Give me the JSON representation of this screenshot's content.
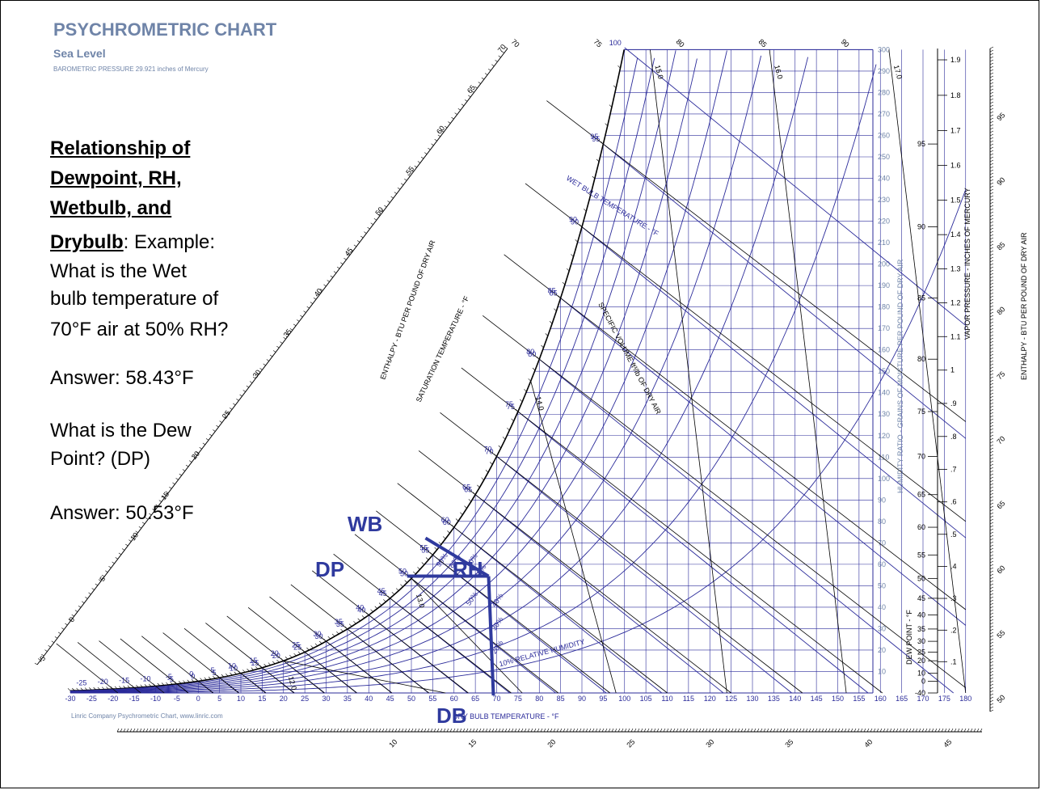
{
  "header": {
    "title": "PSYCHROMETRIC CHART",
    "subtitle": "Sea Level",
    "pressure": "BAROMETRIC PRESSURE 29.921 inches of Mercury"
  },
  "question": {
    "heading_lines": [
      "Relationship of",
      "Dewpoint, RH,",
      "Wetbulb, and",
      "Drybulb"
    ],
    "example_suffix": ":  Example:",
    "q1_lines": [
      "What is the Wet",
      "bulb temperature of",
      "70°F air at 50% RH?"
    ],
    "a1": "Answer: 58.43°F",
    "q2_lines": [
      "What is the Dew",
      "Point? (DP)"
    ],
    "a2": "Answer: 50.53°F"
  },
  "credit": "Linric Company Psychrometric Chart, www.linric.com",
  "markers": {
    "wb": "WB",
    "dp": "DP",
    "rh": "RH",
    "db": "DB"
  },
  "colors": {
    "blue": "#2b2b9a",
    "grey": "#6f84a8",
    "marker": "#2f3a9e"
  },
  "chart_data": {
    "type": "psychrometric",
    "title": "PSYCHROMETRIC CHART",
    "axes": {
      "dry_bulb": {
        "label": "DRY BULB TEMPERATURE - °F",
        "ticks": [
          -30,
          -25,
          -20,
          -15,
          -10,
          -5,
          0,
          5,
          10,
          15,
          20,
          25,
          30,
          35,
          40,
          45,
          50,
          55,
          60,
          65,
          70,
          75,
          80,
          85,
          90,
          95,
          100,
          105,
          110,
          115,
          120,
          125,
          130,
          135,
          140,
          145,
          150,
          155,
          160,
          165,
          170,
          175,
          180
        ]
      },
      "humidity_ratio": {
        "label": "HUMIDITY RATIO - GRAINS OF MOISTURE PER POUND OF DRY AIR",
        "range": [
          0,
          300
        ],
        "ticks": [
          10,
          20,
          30,
          40,
          50,
          60,
          70,
          80,
          90,
          100,
          110,
          120,
          130,
          140,
          150,
          160,
          170,
          180,
          190,
          200,
          210,
          220,
          230,
          240,
          250,
          260,
          270,
          280,
          290,
          300
        ]
      },
      "dew_point": {
        "label": "DEW POINT - °F",
        "ticks": [
          "-40",
          "0",
          "10",
          "20",
          "25",
          "30",
          "35",
          "40",
          "45",
          "50",
          "55",
          "60",
          "65",
          "70",
          "75",
          "80",
          "85",
          "90",
          "95"
        ]
      },
      "vapor_pressure": {
        "label": "VAPOR PRESSURE - INCHES OF MERCURY",
        "ticks": [
          ".1",
          ".2",
          ".3",
          ".4",
          ".5",
          ".6",
          ".7",
          ".8",
          ".9",
          "1",
          "1.1",
          "1.2",
          "1.3",
          "1.4",
          "1.5",
          "1.6",
          "1.7",
          "1.8",
          "1.9"
        ]
      },
      "enthalpy_left": {
        "label": "ENTHALPY - BTU PER POUND OF DRY AIR",
        "ticks": [
          "-5",
          "0",
          "5",
          "10",
          "15",
          "20",
          "25",
          "30",
          "35",
          "40",
          "45",
          "50",
          "55",
          "60",
          "65",
          "70"
        ]
      },
      "enthalpy_right": {
        "label": "ENTHALPY - BTU PER POUND OF DRY AIR",
        "ticks": [
          "50",
          "55",
          "60",
          "65",
          "70",
          "75",
          "80",
          "85",
          "90",
          "95"
        ]
      },
      "enthalpy_bottom": {
        "ticks": [
          "10",
          "15",
          "20",
          "25",
          "30",
          "35",
          "40",
          "45"
        ]
      },
      "enthalpy_top": {
        "ticks": [
          "70",
          "75",
          "80",
          "85",
          "90"
        ]
      }
    },
    "saturation_label": "SATURATION TEMPERATURE - °F",
    "saturation_ticks": [
      "-25",
      "-20",
      "-15",
      "-10",
      "-5",
      "0",
      "5",
      "10",
      "15",
      "20",
      "25",
      "30",
      "35",
      "40",
      "45",
      "50",
      "55",
      "60",
      "65",
      "70",
      "75",
      "80",
      "85",
      "90",
      "95"
    ],
    "wet_bulb_label": "WET BULB TEMPERATURE - °F",
    "wet_bulb_ticks": [
      "-5",
      "0",
      "5",
      "10",
      "15",
      "20",
      "25",
      "30",
      "35",
      "40",
      "45",
      "50",
      "55",
      "60",
      "65",
      "70",
      "75",
      "80",
      "85",
      "90",
      "95",
      "100"
    ],
    "relative_humidity": {
      "label": "10% RELATIVE HUMIDITY",
      "curves": [
        10,
        20,
        30,
        40,
        50,
        60,
        70,
        80,
        90
      ],
      "marked": [
        "20%",
        "30%",
        "40%",
        "50%",
        "60%",
        "70%",
        "80%",
        "90%"
      ]
    },
    "specific_volume": {
      "label": "SPECIFIC VOLUME ft³/lb OF DRY AIR",
      "lines": [
        "12.0",
        "13.0",
        "14.0",
        "15.0",
        "16.0",
        "17.0"
      ]
    },
    "example": {
      "dry_bulb_f": 70,
      "rh_percent": 50,
      "wet_bulb_f": 58.43,
      "dew_point_f": 50.53
    }
  }
}
